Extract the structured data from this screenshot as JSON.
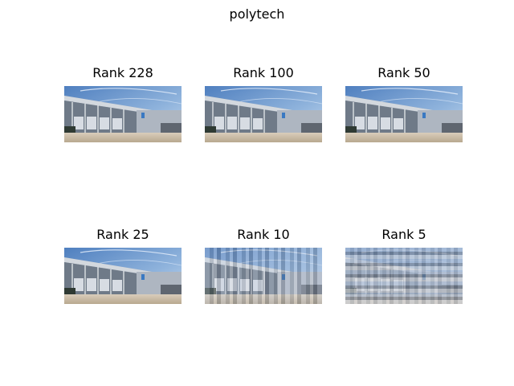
{
  "figure": {
    "title": "polytech"
  },
  "chart_data": {
    "type": "image_grid",
    "title": "polytech",
    "rows": 2,
    "cols": 3,
    "panels": [
      {
        "title": "Rank 228",
        "rank": 228
      },
      {
        "title": "Rank 100",
        "rank": 100
      },
      {
        "title": "Rank 50",
        "rank": 50
      },
      {
        "title": "Rank 25",
        "rank": 25
      },
      {
        "title": "Rank 10",
        "rank": 10
      },
      {
        "title": "Rank 5",
        "rank": 5
      }
    ]
  }
}
